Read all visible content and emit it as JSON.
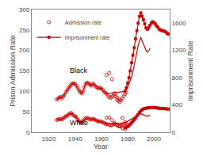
{
  "chart_data": {
    "type": "line",
    "xlabel": "Year",
    "ylabel": "Prison Admission Rate",
    "y2label": "Imprisonment Rate",
    "xlim": [
      1907,
      2012
    ],
    "xticks": [
      1920,
      1940,
      1960,
      1980,
      2000
    ],
    "ylim": [
      0,
      300
    ],
    "yticks": [
      0,
      50,
      100,
      150,
      200,
      250,
      300
    ],
    "y2lim": [
      0,
      1800
    ],
    "y2ticks": [
      0,
      400,
      800,
      1200,
      1600
    ],
    "grid": false,
    "legend": "upper left",
    "annotations": [
      {
        "text": "Black",
        "x": 1935,
        "y": 138
      },
      {
        "text": "White",
        "x": 1935,
        "y": 10
      }
    ],
    "series": [
      {
        "name": "Admission rate",
        "type": "scatter",
        "marker": "open circle",
        "color": "#cc0000",
        "x": [
          1926,
          1927,
          1928,
          1929,
          1930,
          1931,
          1932,
          1933,
          1934,
          1935,
          1936,
          1937,
          1938,
          1939,
          1940,
          1941,
          1942,
          1943,
          1944,
          1945,
          1946,
          1947,
          1948,
          1949,
          1950,
          1951,
          1952,
          1953,
          1954,
          1955,
          1956,
          1957,
          1958,
          1959,
          1960,
          1961,
          1962,
          1963,
          1964,
          1965,
          1966,
          1967,
          1968,
          1969,
          1970,
          1971,
          1972,
          1973,
          1974,
          1975,
          1976,
          1977,
          1978,
          1979,
          1964,
          1966,
          1968,
          1970,
          1972,
          1974,
          1976,
          1978
        ],
        "values": [
          80,
          82,
          85,
          87,
          83,
          88,
          92,
          98,
          103,
          108,
          112,
          116,
          119,
          120,
          118,
          114,
          108,
          102,
          98,
          95,
          100,
          110,
          118,
          121,
          120,
          117,
          114,
          117,
          119,
          114,
          111,
          109,
          107,
          109,
          107,
          104,
          99,
          97,
          94,
          89,
          86,
          84,
          87,
          89,
          94,
          87,
          79,
          77,
          74,
          78,
          83,
          88,
          93,
          98,
          140,
          145,
          130,
          95,
          85,
          80,
          35,
          25
        ]
      },
      {
        "name": "Admission rate",
        "type": "scatter",
        "marker": "open circle",
        "color": "#cc0000",
        "x": [
          1926,
          1927,
          1928,
          1929,
          1930,
          1931,
          1932,
          1933,
          1934,
          1935,
          1936,
          1937,
          1938,
          1939,
          1940,
          1941,
          1942,
          1943,
          1944,
          1945,
          1946,
          1947,
          1948,
          1949,
          1950,
          1951,
          1952,
          1953,
          1954,
          1955,
          1956,
          1957,
          1958,
          1959,
          1960,
          1961,
          1962,
          1963,
          1964,
          1965,
          1966,
          1967,
          1968,
          1969,
          1970,
          1971,
          1972,
          1973,
          1974,
          1975,
          1976,
          1977,
          1978,
          1979,
          1964,
          1966,
          1968,
          1970,
          1972,
          1974,
          1976,
          1978
        ],
        "values": [
          30,
          31,
          32,
          33,
          31,
          34,
          37,
          39,
          41,
          43,
          46,
          47,
          44,
          41,
          39,
          37,
          31,
          27,
          24,
          23,
          27,
          31,
          34,
          35,
          34,
          32,
          31,
          32,
          33,
          31,
          29,
          27,
          26,
          27,
          26,
          24,
          23,
          21,
          20,
          19,
          18,
          17,
          17,
          19,
          21,
          19,
          17,
          15,
          14,
          16,
          17,
          19,
          21,
          22,
          35,
          36,
          30,
          22,
          18,
          15,
          10,
          8
        ]
      },
      {
        "name": "Admission rate",
        "type": "line",
        "line_style": "solid",
        "color": "#cc0000",
        "x": [
          1926,
          1927,
          1928,
          1929,
          1930,
          1931,
          1932,
          1933,
          1934,
          1935,
          1936,
          1937,
          1938,
          1939,
          1940,
          1941,
          1942,
          1943,
          1944,
          1945,
          1946,
          1947,
          1948,
          1949,
          1950,
          1951,
          1952,
          1953,
          1954,
          1955,
          1956,
          1957,
          1958,
          1959,
          1960,
          1961,
          1962,
          1963,
          1964,
          1978,
          1979,
          1980,
          1981,
          1982,
          1983,
          1984,
          1985,
          1986,
          1987,
          1988,
          1989,
          1990,
          1991,
          1992,
          1993,
          1994,
          1995,
          1996,
          1997
        ],
        "values": [
          80,
          82,
          85,
          87,
          83,
          88,
          92,
          98,
          103,
          108,
          112,
          116,
          119,
          120,
          118,
          114,
          108,
          102,
          98,
          95,
          100,
          110,
          118,
          121,
          120,
          117,
          114,
          117,
          119,
          114,
          111,
          109,
          107,
          109,
          107,
          104,
          99,
          97,
          94,
          100,
          105,
          110,
          118,
          126,
          136,
          148,
          162,
          178,
          195,
          212,
          225,
          232,
          224,
          216,
          208,
          200,
          196,
          198,
          205
        ]
      },
      {
        "name": "Admission rate",
        "type": "line",
        "line_style": "solid",
        "color": "#cc0000",
        "x": [
          1926,
          1927,
          1928,
          1929,
          1930,
          1931,
          1932,
          1933,
          1934,
          1935,
          1936,
          1937,
          1938,
          1939,
          1940,
          1941,
          1942,
          1943,
          1944,
          1945,
          1946,
          1947,
          1948,
          1949,
          1950,
          1951,
          1952,
          1953,
          1954,
          1955,
          1956,
          1957,
          1958,
          1959,
          1960,
          1961,
          1962,
          1963,
          1964,
          1978,
          1979,
          1980,
          1981,
          1982,
          1983,
          1984,
          1985,
          1986,
          1987,
          1988,
          1989,
          1990,
          1991,
          1992,
          1993,
          1994,
          1995,
          1996,
          1997
        ],
        "values": [
          30,
          31,
          32,
          33,
          31,
          34,
          37,
          39,
          41,
          43,
          46,
          47,
          44,
          41,
          39,
          37,
          31,
          27,
          24,
          23,
          27,
          31,
          34,
          35,
          34,
          32,
          31,
          32,
          33,
          31,
          29,
          27,
          26,
          27,
          26,
          24,
          23,
          21,
          20,
          23,
          25,
          27,
          29,
          31,
          33,
          35,
          37,
          39,
          41,
          43,
          44,
          45,
          44,
          43,
          41,
          40,
          39,
          40,
          42
        ]
      },
      {
        "name": "Imprisonment rate",
        "type": "line",
        "line_style": "solid",
        "marker": "square",
        "color": "#cc0000",
        "axis": "y2",
        "x": [
          1978,
          1979,
          1980,
          1981,
          1982,
          1983,
          1984,
          1985,
          1986,
          1987,
          1988,
          1989,
          1990,
          1991,
          1992,
          1993,
          1994,
          1995,
          1996,
          1997,
          1998,
          1999,
          2000,
          2001,
          2002,
          2003,
          2004,
          2005,
          2006,
          2007,
          2008,
          2009,
          2010,
          2011
        ],
        "values": [
          600,
          650,
          720,
          800,
          900,
          1020,
          1130,
          1240,
          1370,
          1490,
          1600,
          1700,
          1750,
          1700,
          1650,
          1590,
          1530,
          1510,
          1530,
          1570,
          1600,
          1620,
          1610,
          1590,
          1560,
          1540,
          1510,
          1500,
          1490,
          1490,
          1480,
          1470,
          1450,
          1440
        ]
      },
      {
        "name": "Imprisonment rate",
        "type": "line",
        "line_style": "solid",
        "marker": "square",
        "color": "#cc0000",
        "axis": "y2",
        "x": [
          1978,
          1979,
          1980,
          1981,
          1982,
          1983,
          1984,
          1985,
          1986,
          1987,
          1988,
          1989,
          1990,
          1991,
          1992,
          1993,
          1994,
          1995,
          1996,
          1997,
          1998,
          1999,
          2000,
          2001,
          2002,
          2003,
          2004,
          2005,
          2006,
          2007,
          2008,
          2009,
          2010,
          2011
        ],
        "values": [
          65,
          72,
          82,
          98,
          118,
          140,
          162,
          185,
          210,
          238,
          262,
          290,
          310,
          330,
          342,
          348,
          352,
          356,
          358,
          360,
          362,
          363,
          363,
          360,
          358,
          355,
          352,
          350,
          348,
          347,
          346,
          344,
          342,
          340
        ]
      }
    ]
  }
}
